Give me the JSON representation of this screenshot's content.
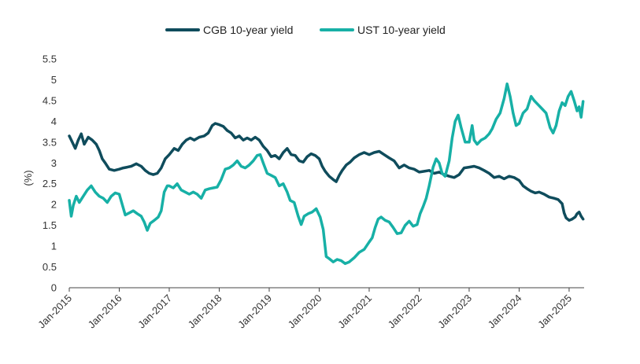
{
  "chart_data": {
    "type": "line",
    "title": "",
    "xlabel": "",
    "ylabel": "(%)",
    "ylim": [
      0,
      5.5
    ],
    "yticks": [
      "0",
      "0.5",
      "1",
      "1.5",
      "2",
      "2.5",
      "3",
      "3.5",
      "4",
      "4.5",
      "5",
      "5.5"
    ],
    "xlim": [
      2015.0,
      2025.3
    ],
    "xticks": [
      {
        "label": "Jan-2015",
        "x": 2015
      },
      {
        "label": "Jan-2016",
        "x": 2016
      },
      {
        "label": "Jan-2017",
        "x": 2017
      },
      {
        "label": "Jan-2018",
        "x": 2018
      },
      {
        "label": "Jan-2019",
        "x": 2019
      },
      {
        "label": "Jan-2020",
        "x": 2020
      },
      {
        "label": "Jan-2021",
        "x": 2021
      },
      {
        "label": "Jan-2022",
        "x": 2022
      },
      {
        "label": "Jan-2023",
        "x": 2023
      },
      {
        "label": "Jan-2024",
        "x": 2024
      },
      {
        "label": "Jan-2025",
        "x": 2025
      }
    ],
    "legend_position": "top-center",
    "series": [
      {
        "name": "CGB 10-year yield",
        "color": "#0f4c5c",
        "points": [
          [
            2015.0,
            3.65
          ],
          [
            2015.06,
            3.5
          ],
          [
            2015.12,
            3.35
          ],
          [
            2015.18,
            3.55
          ],
          [
            2015.24,
            3.7
          ],
          [
            2015.3,
            3.45
          ],
          [
            2015.38,
            3.62
          ],
          [
            2015.46,
            3.55
          ],
          [
            2015.54,
            3.45
          ],
          [
            2015.6,
            3.3
          ],
          [
            2015.66,
            3.1
          ],
          [
            2015.72,
            3.0
          ],
          [
            2015.8,
            2.85
          ],
          [
            2015.9,
            2.82
          ],
          [
            2016.0,
            2.85
          ],
          [
            2016.08,
            2.88
          ],
          [
            2016.16,
            2.9
          ],
          [
            2016.24,
            2.92
          ],
          [
            2016.34,
            2.98
          ],
          [
            2016.44,
            2.92
          ],
          [
            2016.52,
            2.82
          ],
          [
            2016.6,
            2.75
          ],
          [
            2016.68,
            2.72
          ],
          [
            2016.76,
            2.75
          ],
          [
            2016.84,
            2.88
          ],
          [
            2016.92,
            3.1
          ],
          [
            2017.0,
            3.2
          ],
          [
            2017.1,
            3.35
          ],
          [
            2017.18,
            3.3
          ],
          [
            2017.26,
            3.45
          ],
          [
            2017.34,
            3.55
          ],
          [
            2017.42,
            3.6
          ],
          [
            2017.5,
            3.55
          ],
          [
            2017.6,
            3.62
          ],
          [
            2017.7,
            3.65
          ],
          [
            2017.78,
            3.72
          ],
          [
            2017.86,
            3.9
          ],
          [
            2017.92,
            3.95
          ],
          [
            2018.0,
            3.92
          ],
          [
            2018.08,
            3.88
          ],
          [
            2018.16,
            3.78
          ],
          [
            2018.24,
            3.72
          ],
          [
            2018.32,
            3.6
          ],
          [
            2018.4,
            3.65
          ],
          [
            2018.48,
            3.55
          ],
          [
            2018.56,
            3.6
          ],
          [
            2018.64,
            3.55
          ],
          [
            2018.72,
            3.62
          ],
          [
            2018.8,
            3.55
          ],
          [
            2018.88,
            3.4
          ],
          [
            2018.96,
            3.3
          ],
          [
            2019.04,
            3.15
          ],
          [
            2019.12,
            3.18
          ],
          [
            2019.2,
            3.1
          ],
          [
            2019.28,
            3.25
          ],
          [
            2019.36,
            3.35
          ],
          [
            2019.44,
            3.2
          ],
          [
            2019.52,
            3.18
          ],
          [
            2019.6,
            3.05
          ],
          [
            2019.68,
            3.02
          ],
          [
            2019.76,
            3.15
          ],
          [
            2019.84,
            3.22
          ],
          [
            2019.92,
            3.18
          ],
          [
            2020.0,
            3.1
          ],
          [
            2020.06,
            2.92
          ],
          [
            2020.12,
            2.8
          ],
          [
            2020.2,
            2.68
          ],
          [
            2020.28,
            2.6
          ],
          [
            2020.34,
            2.55
          ],
          [
            2020.4,
            2.7
          ],
          [
            2020.46,
            2.82
          ],
          [
            2020.54,
            2.95
          ],
          [
            2020.62,
            3.02
          ],
          [
            2020.7,
            3.12
          ],
          [
            2020.8,
            3.2
          ],
          [
            2020.9,
            3.25
          ],
          [
            2021.0,
            3.2
          ],
          [
            2021.1,
            3.25
          ],
          [
            2021.2,
            3.28
          ],
          [
            2021.3,
            3.2
          ],
          [
            2021.4,
            3.12
          ],
          [
            2021.5,
            3.05
          ],
          [
            2021.6,
            2.88
          ],
          [
            2021.7,
            2.95
          ],
          [
            2021.8,
            2.88
          ],
          [
            2021.9,
            2.85
          ],
          [
            2022.0,
            2.78
          ],
          [
            2022.1,
            2.8
          ],
          [
            2022.2,
            2.82
          ],
          [
            2022.3,
            2.75
          ],
          [
            2022.4,
            2.78
          ],
          [
            2022.5,
            2.72
          ],
          [
            2022.6,
            2.68
          ],
          [
            2022.7,
            2.65
          ],
          [
            2022.8,
            2.72
          ],
          [
            2022.9,
            2.88
          ],
          [
            2023.0,
            2.9
          ],
          [
            2023.1,
            2.92
          ],
          [
            2023.2,
            2.88
          ],
          [
            2023.3,
            2.82
          ],
          [
            2023.4,
            2.75
          ],
          [
            2023.5,
            2.65
          ],
          [
            2023.6,
            2.68
          ],
          [
            2023.7,
            2.62
          ],
          [
            2023.8,
            2.68
          ],
          [
            2023.9,
            2.65
          ],
          [
            2024.0,
            2.58
          ],
          [
            2024.08,
            2.45
          ],
          [
            2024.16,
            2.38
          ],
          [
            2024.24,
            2.32
          ],
          [
            2024.32,
            2.28
          ],
          [
            2024.4,
            2.3
          ],
          [
            2024.5,
            2.25
          ],
          [
            2024.6,
            2.18
          ],
          [
            2024.7,
            2.15
          ],
          [
            2024.78,
            2.12
          ],
          [
            2024.86,
            2.02
          ],
          [
            2024.9,
            1.8
          ],
          [
            2024.94,
            1.68
          ],
          [
            2025.0,
            1.62
          ],
          [
            2025.06,
            1.65
          ],
          [
            2025.12,
            1.7
          ],
          [
            2025.16,
            1.78
          ],
          [
            2025.2,
            1.82
          ],
          [
            2025.24,
            1.72
          ],
          [
            2025.28,
            1.65
          ]
        ]
      },
      {
        "name": "UST 10-year yield",
        "color": "#17b0a6",
        "points": [
          [
            2015.0,
            2.1
          ],
          [
            2015.04,
            1.72
          ],
          [
            2015.08,
            1.98
          ],
          [
            2015.14,
            2.2
          ],
          [
            2015.2,
            2.05
          ],
          [
            2015.28,
            2.2
          ],
          [
            2015.36,
            2.35
          ],
          [
            2015.44,
            2.45
          ],
          [
            2015.52,
            2.3
          ],
          [
            2015.6,
            2.2
          ],
          [
            2015.68,
            2.15
          ],
          [
            2015.76,
            2.05
          ],
          [
            2015.84,
            2.2
          ],
          [
            2015.92,
            2.28
          ],
          [
            2016.0,
            2.25
          ],
          [
            2016.06,
            2.0
          ],
          [
            2016.12,
            1.75
          ],
          [
            2016.2,
            1.8
          ],
          [
            2016.28,
            1.85
          ],
          [
            2016.36,
            1.78
          ],
          [
            2016.44,
            1.72
          ],
          [
            2016.5,
            1.58
          ],
          [
            2016.56,
            1.38
          ],
          [
            2016.62,
            1.55
          ],
          [
            2016.7,
            1.62
          ],
          [
            2016.78,
            1.7
          ],
          [
            2016.84,
            1.85
          ],
          [
            2016.9,
            2.3
          ],
          [
            2016.96,
            2.45
          ],
          [
            2017.0,
            2.45
          ],
          [
            2017.08,
            2.4
          ],
          [
            2017.16,
            2.5
          ],
          [
            2017.24,
            2.35
          ],
          [
            2017.32,
            2.3
          ],
          [
            2017.4,
            2.25
          ],
          [
            2017.48,
            2.3
          ],
          [
            2017.56,
            2.25
          ],
          [
            2017.64,
            2.15
          ],
          [
            2017.72,
            2.35
          ],
          [
            2017.8,
            2.38
          ],
          [
            2017.88,
            2.4
          ],
          [
            2017.96,
            2.42
          ],
          [
            2018.04,
            2.6
          ],
          [
            2018.12,
            2.85
          ],
          [
            2018.2,
            2.88
          ],
          [
            2018.28,
            2.95
          ],
          [
            2018.36,
            3.05
          ],
          [
            2018.44,
            2.92
          ],
          [
            2018.52,
            2.88
          ],
          [
            2018.6,
            2.95
          ],
          [
            2018.68,
            3.05
          ],
          [
            2018.76,
            3.18
          ],
          [
            2018.82,
            3.2
          ],
          [
            2018.88,
            3.0
          ],
          [
            2018.96,
            2.75
          ],
          [
            2019.04,
            2.7
          ],
          [
            2019.12,
            2.65
          ],
          [
            2019.2,
            2.45
          ],
          [
            2019.28,
            2.5
          ],
          [
            2019.36,
            2.3
          ],
          [
            2019.42,
            2.1
          ],
          [
            2019.5,
            2.05
          ],
          [
            2019.58,
            1.72
          ],
          [
            2019.64,
            1.52
          ],
          [
            2019.7,
            1.72
          ],
          [
            2019.78,
            1.78
          ],
          [
            2019.86,
            1.82
          ],
          [
            2019.94,
            1.9
          ],
          [
            2020.02,
            1.7
          ],
          [
            2020.08,
            1.4
          ],
          [
            2020.14,
            0.75
          ],
          [
            2020.2,
            0.7
          ],
          [
            2020.28,
            0.62
          ],
          [
            2020.36,
            0.68
          ],
          [
            2020.44,
            0.65
          ],
          [
            2020.52,
            0.58
          ],
          [
            2020.6,
            0.62
          ],
          [
            2020.7,
            0.72
          ],
          [
            2020.8,
            0.85
          ],
          [
            2020.9,
            0.92
          ],
          [
            2021.0,
            1.1
          ],
          [
            2021.06,
            1.2
          ],
          [
            2021.12,
            1.45
          ],
          [
            2021.18,
            1.65
          ],
          [
            2021.24,
            1.7
          ],
          [
            2021.32,
            1.62
          ],
          [
            2021.4,
            1.58
          ],
          [
            2021.48,
            1.45
          ],
          [
            2021.56,
            1.3
          ],
          [
            2021.64,
            1.32
          ],
          [
            2021.72,
            1.5
          ],
          [
            2021.8,
            1.6
          ],
          [
            2021.88,
            1.48
          ],
          [
            2021.96,
            1.52
          ],
          [
            2022.02,
            1.78
          ],
          [
            2022.08,
            1.95
          ],
          [
            2022.14,
            2.15
          ],
          [
            2022.2,
            2.45
          ],
          [
            2022.28,
            2.9
          ],
          [
            2022.34,
            3.1
          ],
          [
            2022.4,
            3.0
          ],
          [
            2022.46,
            2.75
          ],
          [
            2022.52,
            2.68
          ],
          [
            2022.6,
            3.05
          ],
          [
            2022.66,
            3.6
          ],
          [
            2022.72,
            4.0
          ],
          [
            2022.78,
            4.15
          ],
          [
            2022.84,
            3.85
          ],
          [
            2022.92,
            3.5
          ],
          [
            2023.0,
            3.5
          ],
          [
            2023.06,
            3.9
          ],
          [
            2023.1,
            3.55
          ],
          [
            2023.16,
            3.45
          ],
          [
            2023.24,
            3.55
          ],
          [
            2023.32,
            3.6
          ],
          [
            2023.4,
            3.7
          ],
          [
            2023.46,
            3.82
          ],
          [
            2023.54,
            4.05
          ],
          [
            2023.62,
            4.2
          ],
          [
            2023.7,
            4.55
          ],
          [
            2023.76,
            4.9
          ],
          [
            2023.82,
            4.6
          ],
          [
            2023.88,
            4.2
          ],
          [
            2023.94,
            3.9
          ],
          [
            2024.0,
            3.95
          ],
          [
            2024.08,
            4.2
          ],
          [
            2024.16,
            4.3
          ],
          [
            2024.24,
            4.6
          ],
          [
            2024.3,
            4.5
          ],
          [
            2024.38,
            4.4
          ],
          [
            2024.46,
            4.3
          ],
          [
            2024.54,
            4.2
          ],
          [
            2024.62,
            3.85
          ],
          [
            2024.68,
            3.72
          ],
          [
            2024.74,
            3.9
          ],
          [
            2024.8,
            4.25
          ],
          [
            2024.86,
            4.45
          ],
          [
            2024.92,
            4.38
          ],
          [
            2024.98,
            4.6
          ],
          [
            2025.04,
            4.72
          ],
          [
            2025.1,
            4.5
          ],
          [
            2025.16,
            4.25
          ],
          [
            2025.2,
            4.35
          ],
          [
            2025.24,
            4.1
          ],
          [
            2025.28,
            4.48
          ]
        ]
      }
    ]
  }
}
